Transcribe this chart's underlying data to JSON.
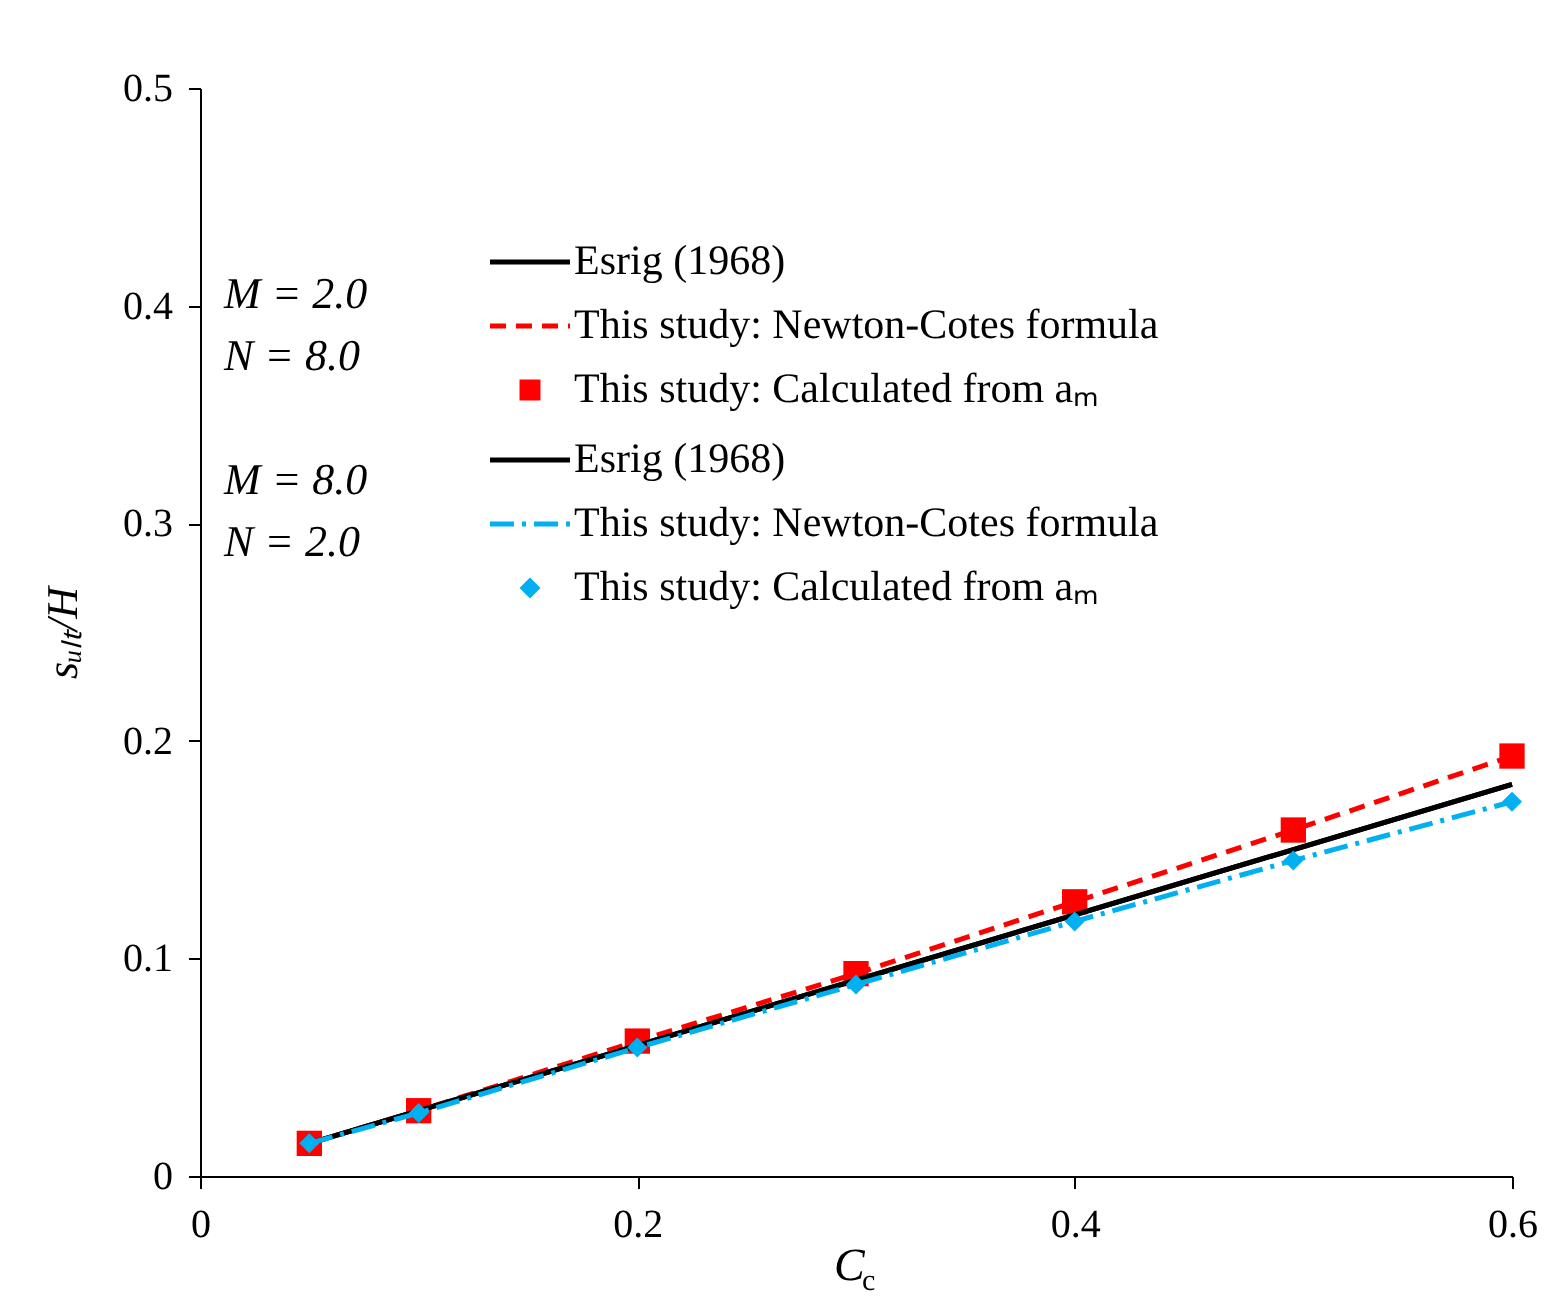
{
  "chart_data": {
    "type": "line",
    "xlabel": "C$_{c}$",
    "ylabel": "sᵤₗₜ/H",
    "xlim": [
      0,
      0.6
    ],
    "xticks": [
      0,
      0.2,
      0.4,
      0.6
    ],
    "ylim": [
      0,
      0.5
    ],
    "yticks": [
      0,
      0.1,
      0.2,
      0.3,
      0.4,
      0.5
    ],
    "grid": false,
    "legend": "top left",
    "annotations": [
      "M = 2.0",
      "N = 8.0",
      "M = 8.0",
      "N = 2.0"
    ],
    "series": [
      {
        "name": "Esrig (1968)",
        "type": "line",
        "color": "#000000",
        "line_style": "solid",
        "x": [
          0.05,
          0.6
        ],
        "values": [
          0.015,
          0.18
        ]
      },
      {
        "name": "This study: Newton-Cotes formula",
        "type": "line",
        "color": "#ff0000",
        "line_style": "dashed",
        "x": [
          0.05,
          0.1,
          0.2,
          0.3,
          0.4,
          0.5,
          0.6
        ],
        "values": [
          0.015,
          0.03,
          0.062,
          0.093,
          0.126,
          0.159,
          0.193
        ]
      },
      {
        "name": "This study:  Calculated from aₘ",
        "type": "scatter",
        "color": "#ff0000",
        "marker": "square",
        "x": [
          0.05,
          0.1,
          0.2,
          0.3,
          0.4,
          0.5,
          0.6
        ],
        "values": [
          0.015,
          0.03,
          0.062,
          0.093,
          0.126,
          0.159,
          0.193
        ]
      },
      {
        "name": "Esrig (1968)",
        "type": "line",
        "color": "#000000",
        "line_style": "solid",
        "x": [
          0.05,
          0.6
        ],
        "values": [
          0.015,
          0.18
        ]
      },
      {
        "name": "This study: Newton-Cotes formula",
        "type": "line",
        "color": "#00b0f0",
        "line_style": "dashdot",
        "x": [
          0.05,
          0.1,
          0.2,
          0.3,
          0.4,
          0.5,
          0.6
        ],
        "values": [
          0.015,
          0.029,
          0.059,
          0.088,
          0.117,
          0.145,
          0.172
        ]
      },
      {
        "name": "This study:  Calculated from aₘ",
        "type": "scatter",
        "color": "#00b0f0",
        "marker": "diamond",
        "x": [
          0.05,
          0.1,
          0.2,
          0.3,
          0.4,
          0.5,
          0.6
        ],
        "values": [
          0.015,
          0.029,
          0.059,
          0.088,
          0.117,
          0.145,
          0.172
        ]
      }
    ]
  }
}
